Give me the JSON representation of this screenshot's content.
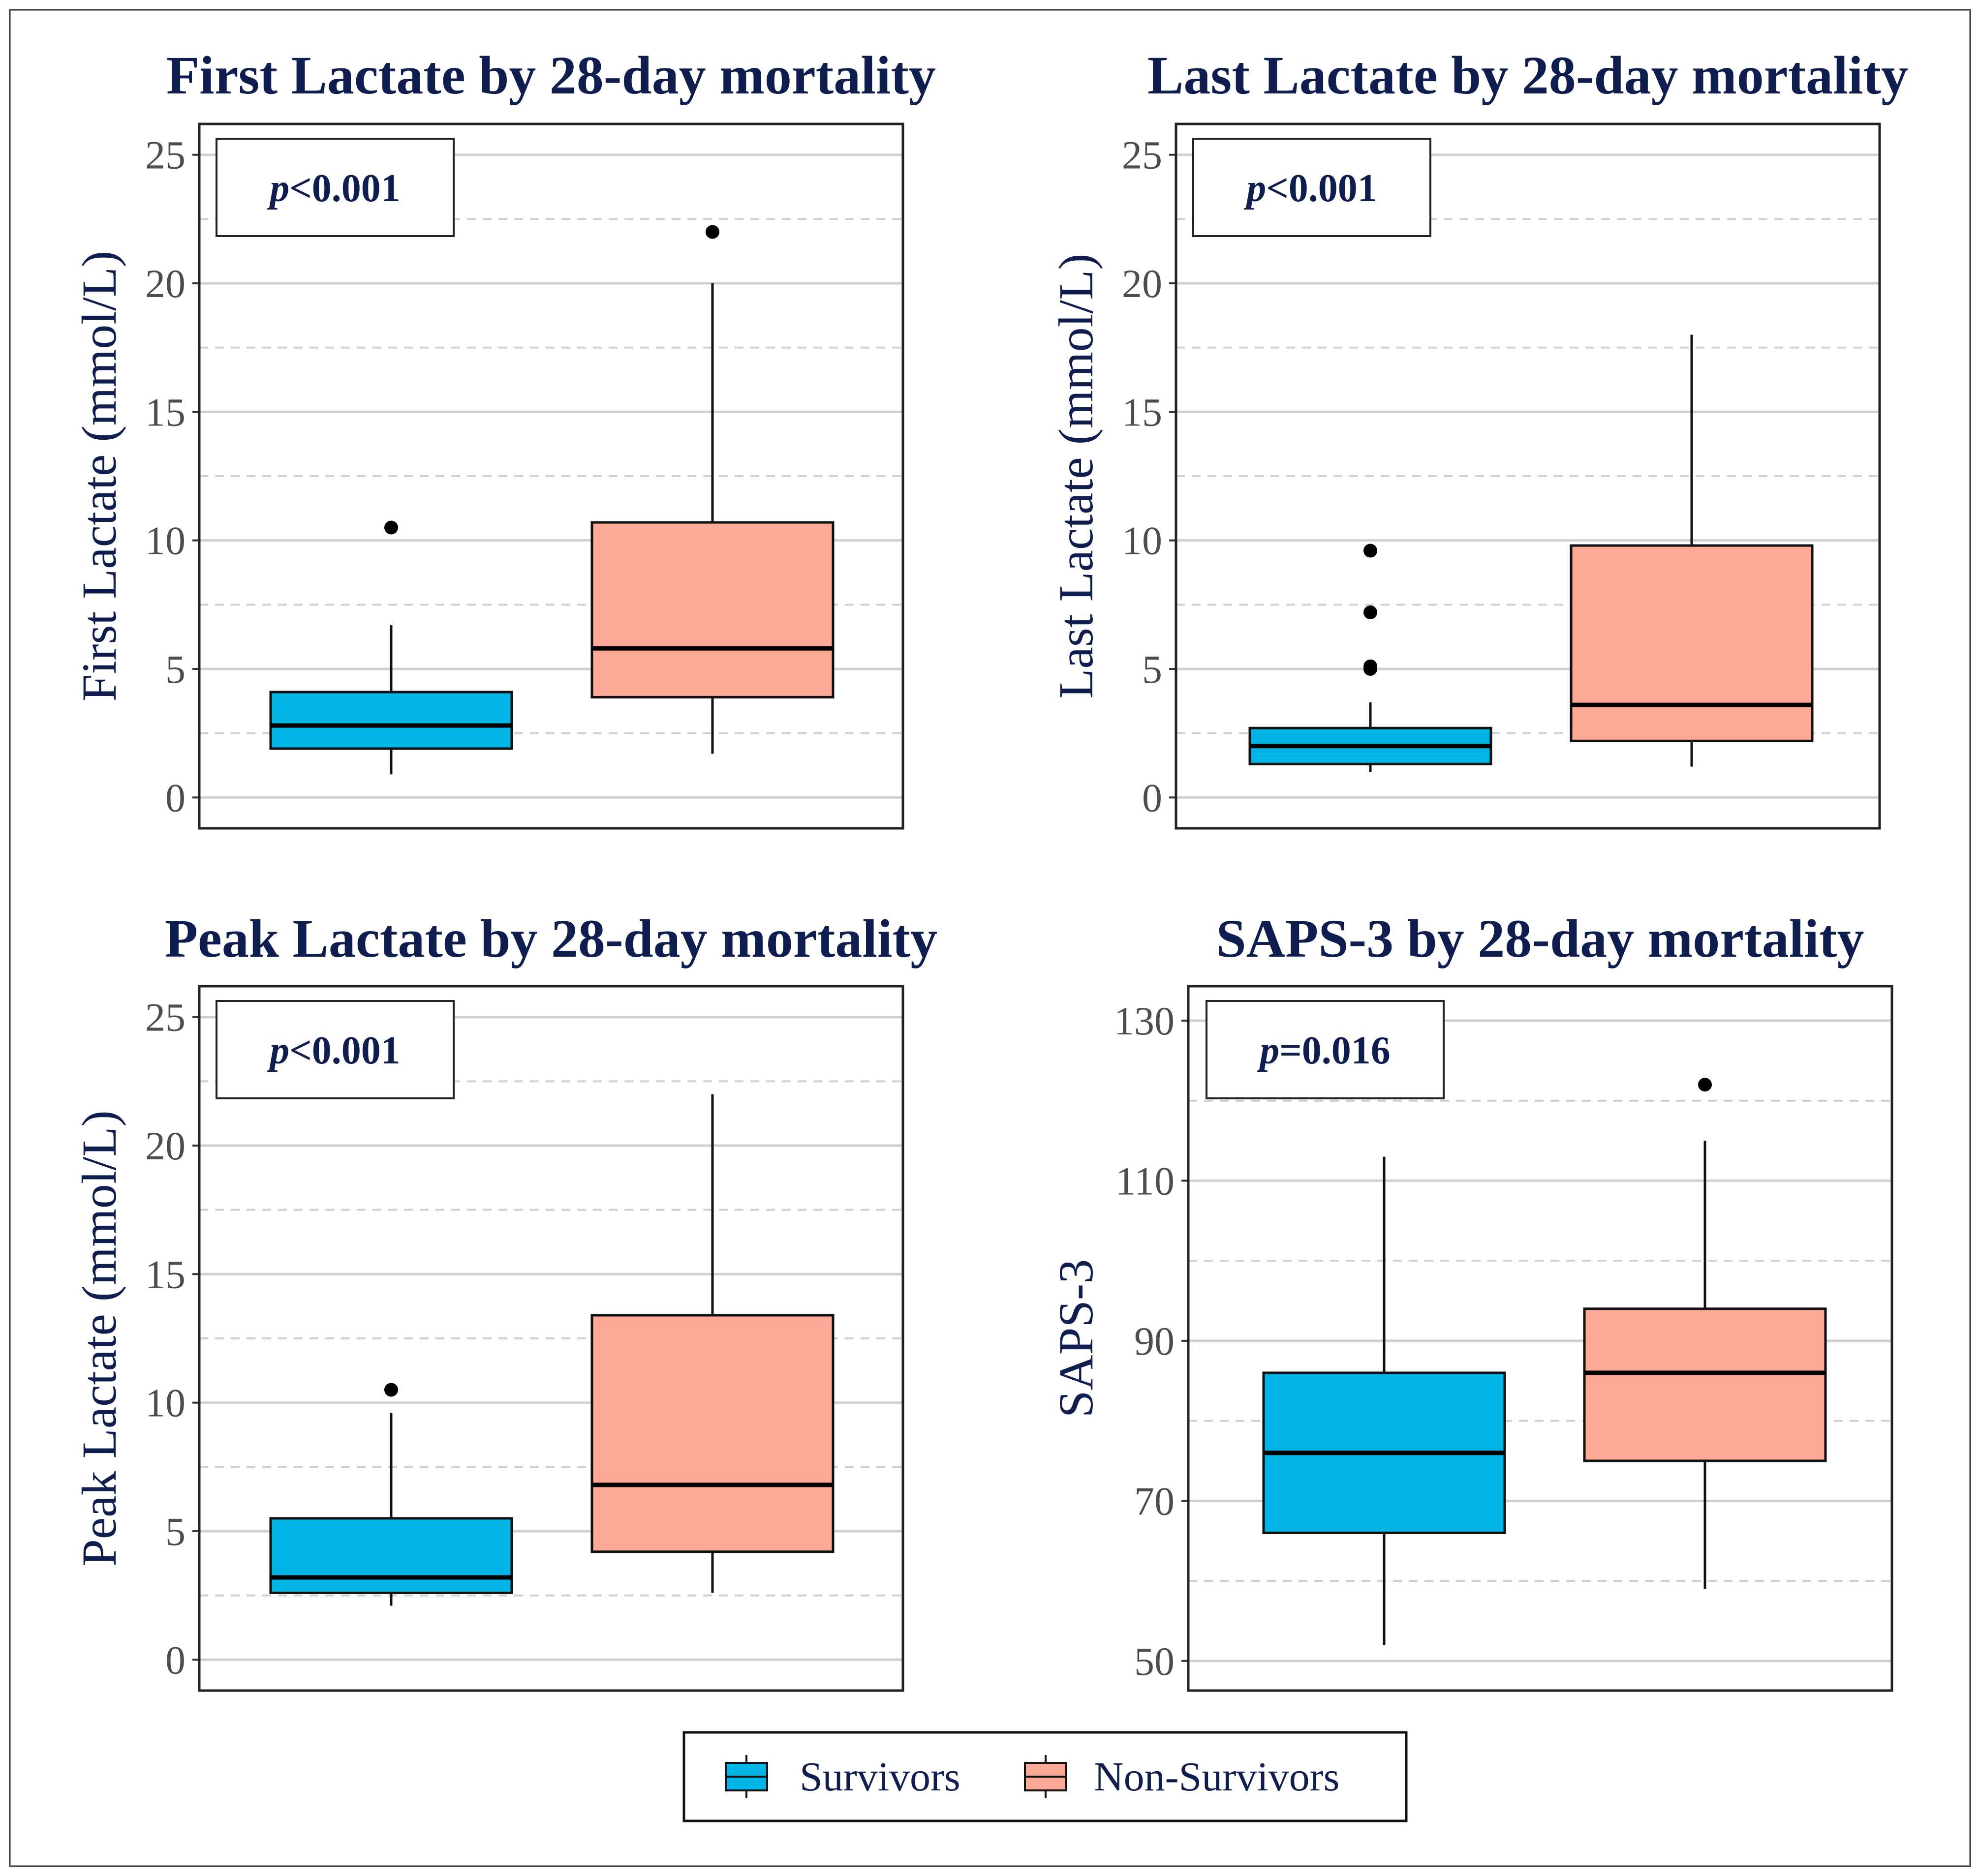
{
  "chart_data": [
    {
      "type": "boxplot",
      "title": "First Lactate by 28-day mortality",
      "ylabel": "First Lactate (mmol/L)",
      "xlabel": "",
      "ylim": [
        -1.2,
        26.2
      ],
      "yticks": [
        0,
        5,
        10,
        15,
        20,
        25
      ],
      "minor_gridlines": [
        2.5,
        7.5,
        12.5,
        17.5,
        22.5
      ],
      "annotation": {
        "italic": "p",
        "rest": "<0.001"
      },
      "groups": [
        {
          "name": "Survivors",
          "whisker_low": 0.9,
          "q1": 1.9,
          "median": 2.8,
          "q3": 4.1,
          "whisker_high": 6.7,
          "outliers": [
            10.5
          ]
        },
        {
          "name": "Non-Survivors",
          "whisker_low": 1.7,
          "q1": 3.9,
          "median": 5.8,
          "q3": 10.7,
          "whisker_high": 20.0,
          "outliers": [
            22.0
          ]
        }
      ]
    },
    {
      "type": "boxplot",
      "title": "Last Lactate by 28-day mortality",
      "ylabel": "Last Lactate (mmol/L)",
      "xlabel": "",
      "ylim": [
        -1.2,
        26.2
      ],
      "yticks": [
        0,
        5,
        10,
        15,
        20,
        25
      ],
      "minor_gridlines": [
        2.5,
        7.5,
        12.5,
        17.5,
        22.5
      ],
      "annotation": {
        "italic": "p",
        "rest": "<0.001"
      },
      "groups": [
        {
          "name": "Survivors",
          "whisker_low": 1.0,
          "q1": 1.3,
          "median": 2.0,
          "q3": 2.7,
          "whisker_high": 3.7,
          "outliers": [
            5.0,
            5.1,
            7.2,
            9.6
          ]
        },
        {
          "name": "Non-Survivors",
          "whisker_low": 1.2,
          "q1": 2.2,
          "median": 3.6,
          "q3": 9.8,
          "whisker_high": 18.0,
          "outliers": []
        }
      ]
    },
    {
      "type": "boxplot",
      "title": "Peak Lactate by 28-day mortality",
      "ylabel": "Peak Lactate (mmol/L)",
      "xlabel": "",
      "ylim": [
        -1.2,
        26.2
      ],
      "yticks": [
        0,
        5,
        10,
        15,
        20,
        25
      ],
      "minor_gridlines": [
        2.5,
        7.5,
        12.5,
        17.5,
        22.5
      ],
      "annotation": {
        "italic": "p",
        "rest": "<0.001"
      },
      "groups": [
        {
          "name": "Survivors",
          "whisker_low": 2.1,
          "q1": 2.6,
          "median": 3.2,
          "q3": 5.5,
          "whisker_high": 9.6,
          "outliers": [
            10.5
          ]
        },
        {
          "name": "Non-Survivors",
          "whisker_low": 2.6,
          "q1": 4.2,
          "median": 6.8,
          "q3": 13.4,
          "whisker_high": 22.0,
          "outliers": []
        }
      ]
    },
    {
      "type": "boxplot",
      "title": "SAPS-3 by 28-day mortality",
      "ylabel": "SAPS-3",
      "xlabel": "",
      "ylim": [
        46.3,
        134.3
      ],
      "yticks": [
        50,
        70,
        90,
        110,
        130
      ],
      "minor_gridlines": [
        60,
        80,
        100,
        120
      ],
      "annotation": {
        "italic": "p",
        "rest": "=0.016"
      },
      "groups": [
        {
          "name": "Survivors",
          "whisker_low": 52,
          "q1": 66,
          "median": 76,
          "q3": 86,
          "whisker_high": 113,
          "outliers": []
        },
        {
          "name": "Non-Survivors",
          "whisker_low": 59,
          "q1": 75,
          "median": 86,
          "q3": 94,
          "whisker_high": 115,
          "outliers": [
            122
          ]
        }
      ]
    }
  ],
  "legend": {
    "items": [
      {
        "label": "Survivors",
        "color": "#00b4e6"
      },
      {
        "label": "Non-Survivors",
        "color": "#fba894"
      }
    ]
  },
  "colors": {
    "survivors": "#00b4e6",
    "non_survivors": "#fba894",
    "title": "#0f1e4f",
    "tick": "#4d4d4d",
    "grid": "#d0d0d0"
  }
}
